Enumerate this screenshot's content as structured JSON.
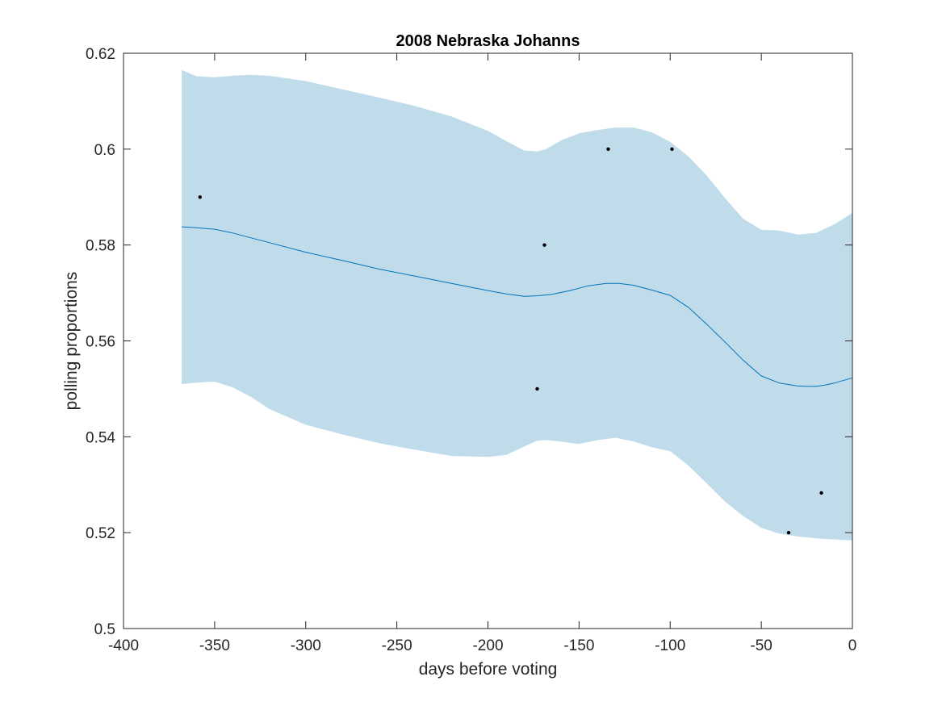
{
  "chart_data": {
    "type": "line",
    "title": "2008 Nebraska Johanns",
    "xlabel": "days before voting",
    "ylabel": "polling proportions",
    "xlim": [
      -400,
      0
    ],
    "ylim": [
      0.5,
      0.62
    ],
    "xticks": [
      -400,
      -350,
      -300,
      -250,
      -200,
      -150,
      -100,
      -50,
      0
    ],
    "xtick_labels": [
      "-400",
      "-350",
      "-300",
      "-250",
      "-200",
      "-150",
      "-100",
      "-50",
      "0"
    ],
    "yticks": [
      0.5,
      0.52,
      0.54,
      0.56,
      0.58,
      0.6,
      0.62
    ],
    "ytick_labels": [
      "0.5",
      "0.52",
      "0.54",
      "0.56",
      "0.58",
      "0.6",
      "0.62"
    ],
    "grid": false,
    "legend": "none",
    "series": [
      {
        "kind": "band",
        "color": "#c0dcea",
        "x": [
          -368,
          -360,
          -350,
          -340,
          -330,
          -320,
          -300,
          -280,
          -260,
          -240,
          -220,
          -200,
          -190,
          -180,
          -173,
          -168,
          -160,
          -150,
          -140,
          -130,
          -120,
          -110,
          -100,
          -90,
          -80,
          -70,
          -60,
          -50,
          -40,
          -30,
          -20,
          -10,
          0
        ],
        "upper": [
          0.6165,
          0.6152,
          0.615,
          0.6153,
          0.6155,
          0.6153,
          0.6142,
          0.6125,
          0.6108,
          0.609,
          0.6068,
          0.6038,
          0.6017,
          0.5997,
          0.5995,
          0.6,
          0.6018,
          0.6033,
          0.604,
          0.6045,
          0.6045,
          0.6035,
          0.6015,
          0.5985,
          0.5945,
          0.5898,
          0.5855,
          0.5832,
          0.583,
          0.5822,
          0.5825,
          0.5843,
          0.5867
        ],
        "lower": [
          0.551,
          0.5513,
          0.5515,
          0.5503,
          0.5483,
          0.5458,
          0.5425,
          0.5405,
          0.5387,
          0.5373,
          0.536,
          0.5358,
          0.5362,
          0.538,
          0.5392,
          0.5393,
          0.539,
          0.5385,
          0.5393,
          0.5398,
          0.539,
          0.5378,
          0.537,
          0.534,
          0.5303,
          0.5265,
          0.5235,
          0.521,
          0.5198,
          0.5192,
          0.5188,
          0.5186,
          0.5184
        ]
      },
      {
        "kind": "line",
        "color": "#0072bd",
        "x": [
          -368,
          -360,
          -350,
          -340,
          -330,
          -320,
          -300,
          -280,
          -260,
          -240,
          -220,
          -200,
          -190,
          -180,
          -173,
          -165,
          -155,
          -145,
          -135,
          -128,
          -120,
          -110,
          -100,
          -90,
          -80,
          -70,
          -60,
          -50,
          -40,
          -30,
          -25,
          -20,
          -15,
          -10,
          0
        ],
        "y": [
          0.5838,
          0.5836,
          0.5833,
          0.5825,
          0.5815,
          0.5805,
          0.5785,
          0.5768,
          0.575,
          0.5735,
          0.572,
          0.5705,
          0.5698,
          0.5693,
          0.5694,
          0.5697,
          0.5705,
          0.5715,
          0.572,
          0.572,
          0.5716,
          0.5706,
          0.5695,
          0.567,
          0.5635,
          0.5598,
          0.556,
          0.5527,
          0.5512,
          0.5506,
          0.5505,
          0.5505,
          0.5508,
          0.5512,
          0.5523
        ]
      },
      {
        "kind": "points",
        "color": "#000000",
        "points": [
          {
            "x": -358,
            "y": 0.59
          },
          {
            "x": -173,
            "y": 0.55
          },
          {
            "x": -169,
            "y": 0.58
          },
          {
            "x": -134,
            "y": 0.6
          },
          {
            "x": -99,
            "y": 0.6
          },
          {
            "x": -35,
            "y": 0.52
          },
          {
            "x": -17,
            "y": 0.5283
          }
        ]
      }
    ]
  }
}
